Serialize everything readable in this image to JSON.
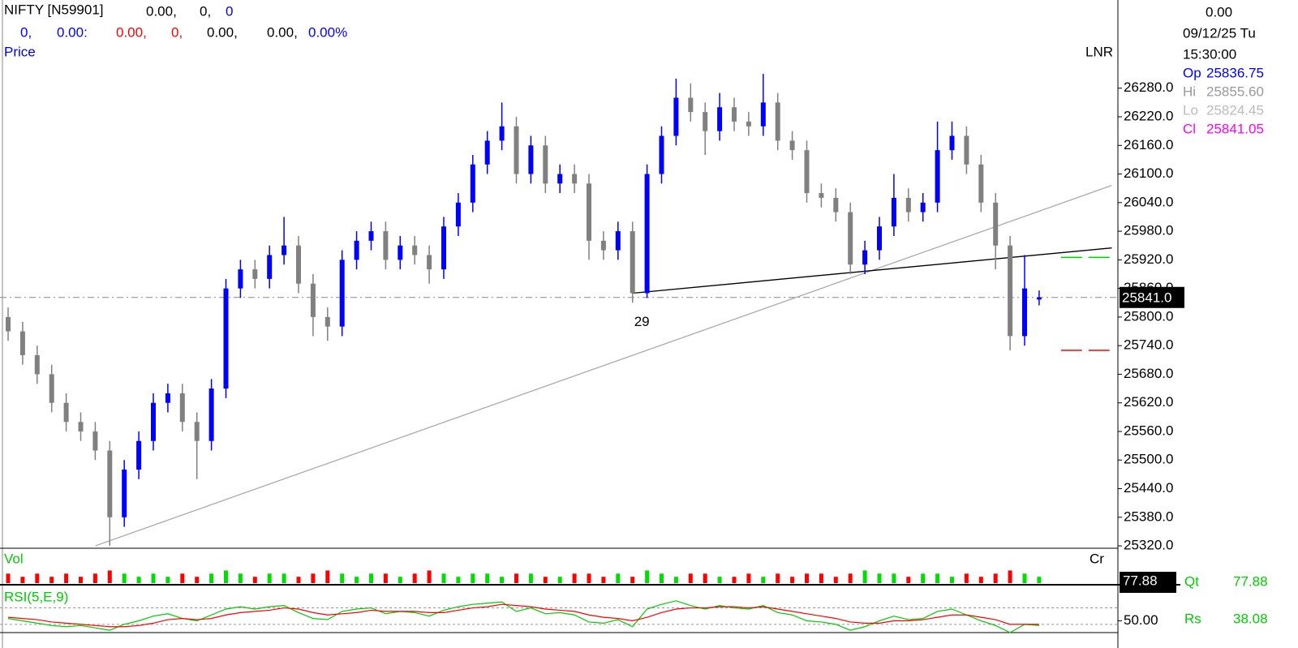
{
  "header": {
    "symbol": "NIFTY [N59901]",
    "v1": "0.00,",
    "v2": "0,",
    "v3": "0",
    "r1": "0,",
    "r2": "0.00:",
    "r3": "0.00,",
    "r4": "0,",
    "r5": "0.00,",
    "r6": "0.00,",
    "r7": "0.00%"
  },
  "info_panel": {
    "top": "0.00",
    "date": "09/12/25 Tu",
    "time": "15:30:00",
    "op_label": "Op",
    "op": "25836.75",
    "hi_label": "Hi",
    "hi": "25855.60",
    "lo_label": "Lo",
    "lo": "25824.45",
    "cl_label": "Cl",
    "cl": "25841.05",
    "qt_label": "Qt",
    "qt": "77.88",
    "rs_label": "Rs",
    "rs": "38.08"
  },
  "chart_data": [
    {
      "type": "candlestick",
      "label": "Price",
      "corner_label": "LNR",
      "up_color": "#0000ff",
      "down_color": "#808080",
      "open": [
        25800,
        25770,
        25720,
        25680,
        25620,
        25580,
        25560,
        25520,
        25380,
        25480,
        25540,
        25620,
        25640,
        25580,
        25540,
        25650,
        25860,
        25900,
        25880,
        25930,
        25950,
        25870,
        25800,
        25780,
        25920,
        25960,
        25980,
        25920,
        25950,
        25930,
        25900,
        25990,
        26040,
        26120,
        26170,
        26200,
        26100,
        26160,
        26080,
        26100,
        26080,
        25960,
        25940,
        25980,
        25850,
        26100,
        26180,
        26260,
        26230,
        26190,
        26240,
        26210,
        26200,
        26250,
        26170,
        26150,
        26060,
        26050,
        26020,
        25910,
        25940,
        25990,
        26050,
        26020,
        26040,
        26150,
        26180,
        26120,
        26040,
        25950,
        25760,
        25836.75
      ],
      "high": [
        25820,
        25790,
        25740,
        25700,
        25640,
        25600,
        25580,
        25540,
        25500,
        25560,
        25640,
        25660,
        25660,
        25600,
        25670,
        25880,
        25920,
        25920,
        25950,
        26010,
        25970,
        25890,
        25820,
        25940,
        25980,
        26000,
        26000,
        25970,
        25970,
        25950,
        26010,
        26060,
        26140,
        26190,
        26250,
        26220,
        26180,
        26180,
        26120,
        26120,
        26100,
        25980,
        26000,
        26000,
        26120,
        26200,
        26300,
        26290,
        26250,
        26270,
        26260,
        26230,
        26310,
        26270,
        26190,
        26170,
        26080,
        26070,
        26040,
        25960,
        26010,
        26100,
        26070,
        26060,
        26210,
        26210,
        26200,
        26140,
        26060,
        25970,
        25930,
        25855.6
      ],
      "low": [
        25750,
        25700,
        25660,
        25600,
        25560,
        25540,
        25500,
        25320,
        25360,
        25460,
        25520,
        25600,
        25560,
        25460,
        25520,
        25630,
        25840,
        25860,
        25860,
        25910,
        25850,
        25760,
        25750,
        25760,
        25900,
        25940,
        25900,
        25900,
        25910,
        25870,
        25880,
        25970,
        26020,
        26100,
        26150,
        26080,
        26080,
        26060,
        26060,
        26060,
        25920,
        25920,
        25920,
        25830,
        25840,
        26080,
        26160,
        26210,
        26140,
        26170,
        26190,
        26180,
        26180,
        26150,
        26130,
        26040,
        26030,
        26000,
        25890,
        25890,
        25920,
        25970,
        26000,
        26000,
        26020,
        26130,
        26100,
        26020,
        25900,
        25730,
        25740,
        25824.45
      ],
      "close": [
        25770,
        25720,
        25680,
        25620,
        25580,
        25560,
        25520,
        25380,
        25480,
        25540,
        25620,
        25640,
        25580,
        25540,
        25650,
        25860,
        25900,
        25880,
        25930,
        25950,
        25870,
        25800,
        25780,
        25920,
        25960,
        25980,
        25920,
        25950,
        25930,
        25900,
        25990,
        26040,
        26120,
        26170,
        26200,
        26100,
        26160,
        26080,
        26100,
        26080,
        25960,
        25940,
        25980,
        25850,
        26100,
        26180,
        26260,
        26230,
        26190,
        26240,
        26210,
        26200,
        26250,
        26170,
        26150,
        26060,
        26050,
        26020,
        25910,
        25940,
        25990,
        26050,
        26020,
        26040,
        26150,
        26180,
        26120,
        26040,
        25950,
        25760,
        25860,
        25841.05
      ],
      "ylim": [
        25315,
        26465
      ],
      "yticks": [
        {
          "value": 26280,
          "label": "26280.0"
        },
        {
          "value": 26220,
          "label": "26220.0"
        },
        {
          "value": 26160,
          "label": "26160.0"
        },
        {
          "value": 26100,
          "label": "26100.0"
        },
        {
          "value": 26040,
          "label": "26040.0"
        },
        {
          "value": 25980,
          "label": "25980.0"
        },
        {
          "value": 25920,
          "label": "25920.0"
        },
        {
          "value": 25860,
          "label": "25860.0"
        },
        {
          "value": 25800,
          "label": "25800.0"
        },
        {
          "value": 25740,
          "label": "25740.0"
        },
        {
          "value": 25680,
          "label": "25680.0"
        },
        {
          "value": 25620,
          "label": "25620.0"
        },
        {
          "value": 25560,
          "label": "25560.0"
        },
        {
          "value": 25500,
          "label": "25500.0"
        },
        {
          "value": 25440,
          "label": "25440.0"
        },
        {
          "value": 25380,
          "label": "25380.0"
        },
        {
          "value": 25320,
          "label": "25320.0"
        }
      ],
      "last_price": {
        "value": 25841.05,
        "label": "25841.0",
        "color": "#888888"
      },
      "trendlines": [
        {
          "from": [
            6,
            25320
          ],
          "to": [
            76,
            26076
          ],
          "color": "#aaaaaa"
        },
        {
          "from": [
            43,
            25850
          ],
          "to": [
            76,
            25945
          ],
          "color": "#000000"
        }
      ],
      "target_levels": [
        {
          "value": 25925,
          "start": 72.5,
          "end": 76,
          "color": "#00cc00"
        },
        {
          "value": 25730,
          "start": 72.5,
          "end": 76,
          "color": "#ff0000"
        }
      ],
      "annotation": {
        "text": "29",
        "index": 43
      }
    },
    {
      "type": "bar",
      "label": "Vol",
      "corner_label": "Cr",
      "last_label": "77.88",
      "up_color": "#00dd00",
      "down_color": "#ff0000",
      "ylim": [
        0,
        10
      ],
      "values": [
        3,
        2,
        3,
        2,
        3,
        2,
        3,
        4,
        3,
        2,
        3,
        2,
        3,
        2,
        3,
        4,
        3,
        2,
        3,
        3,
        2,
        3,
        4,
        3,
        2,
        3,
        3,
        2,
        3,
        4,
        3,
        2,
        3,
        3,
        2,
        3,
        3,
        2,
        2,
        3,
        3,
        2,
        3,
        2,
        4,
        3,
        2,
        3,
        3,
        2,
        2,
        3,
        2,
        3,
        2,
        3,
        3,
        2,
        3,
        4,
        3,
        3,
        2,
        3,
        3,
        2,
        3,
        2,
        3,
        4,
        3,
        2
      ]
    },
    {
      "type": "line",
      "label": "RSI(5,E,9)",
      "ylim": [
        40,
        80
      ],
      "yticks": [
        {
          "value": 50,
          "label": "50.00"
        }
      ],
      "levels": [
        61,
        47
      ],
      "series": [
        {
          "color": "#00cc00",
          "values": [
            52,
            50,
            48,
            46,
            45,
            46,
            44,
            42,
            47,
            50,
            54,
            56,
            52,
            50,
            55,
            60,
            62,
            60,
            62,
            63,
            57,
            52,
            51,
            58,
            60,
            61,
            56,
            58,
            57,
            54,
            59,
            62,
            64,
            65,
            66,
            58,
            61,
            56,
            57,
            55,
            49,
            48,
            51,
            45,
            60,
            64,
            67,
            63,
            60,
            63,
            61,
            60,
            63,
            57,
            55,
            50,
            49,
            47,
            42,
            45,
            50,
            54,
            51,
            52,
            58,
            60,
            55,
            50,
            46,
            40,
            47,
            46
          ]
        },
        {
          "color": "#ff0000",
          "values": [
            53,
            52,
            51,
            49,
            48,
            47,
            46,
            45,
            45,
            46,
            48,
            51,
            52,
            51,
            52,
            55,
            57,
            58,
            59,
            61,
            60,
            57,
            55,
            56,
            57,
            59,
            58,
            58,
            58,
            57,
            57,
            59,
            61,
            62,
            64,
            63,
            62,
            60,
            59,
            58,
            55,
            53,
            52,
            50,
            53,
            57,
            60,
            61,
            61,
            62,
            62,
            61,
            62,
            60,
            58,
            56,
            54,
            52,
            49,
            48,
            48,
            50,
            50,
            51,
            53,
            55,
            55,
            53,
            51,
            47,
            47,
            47
          ]
        }
      ]
    }
  ]
}
